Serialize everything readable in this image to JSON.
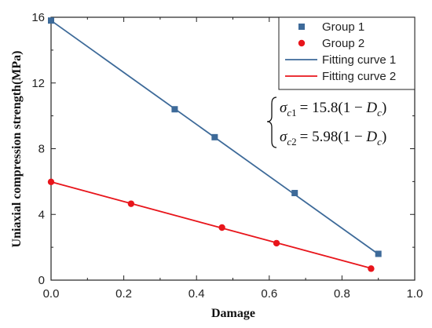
{
  "chart_data": {
    "type": "scatter",
    "xlabel": "Damage",
    "ylabel": "Uniaxial compression strength(MPa)",
    "xlim": [
      0.0,
      1.0
    ],
    "ylim": [
      0,
      16
    ],
    "xticks": [
      "0.0",
      "0.2",
      "0.4",
      "0.6",
      "0.8",
      "1.0"
    ],
    "yticks": [
      "0",
      "4",
      "8",
      "12",
      "16"
    ],
    "legend_position": "top-right",
    "grid": false,
    "series": [
      {
        "name": "Group 1",
        "kind": "points",
        "marker": "square",
        "color": "#3d6a99",
        "x": [
          0.0,
          0.34,
          0.45,
          0.67,
          0.9
        ],
        "y": [
          15.8,
          10.4,
          8.7,
          5.3,
          1.6
        ]
      },
      {
        "name": "Group 2",
        "kind": "points",
        "marker": "circle",
        "color": "#e8151b",
        "x": [
          0.0,
          0.22,
          0.47,
          0.62,
          0.88
        ],
        "y": [
          5.98,
          4.65,
          3.2,
          2.25,
          0.7
        ]
      },
      {
        "name": "Fitting curve 1",
        "kind": "line",
        "color": "#3d6a99",
        "x": [
          0.0,
          0.9
        ],
        "y": [
          15.8,
          1.58
        ]
      },
      {
        "name": "Fitting curve 2",
        "kind": "line",
        "color": "#e8151b",
        "x": [
          0.0,
          0.88
        ],
        "y": [
          5.98,
          0.72
        ]
      }
    ],
    "annotations": {
      "equation_1": {
        "sigma": "σ",
        "sub_1": "c",
        "sub_2": "1",
        "rhs": "= 15.8(1 − ",
        "d": "D",
        "d_sub": "c",
        "close": ")"
      },
      "equation_2": {
        "sigma": "σ",
        "sub_1": "c",
        "sub_2": "2",
        "rhs": "= 5.98(1 − ",
        "d": "D",
        "d_sub": "c",
        "close": ")"
      }
    }
  }
}
